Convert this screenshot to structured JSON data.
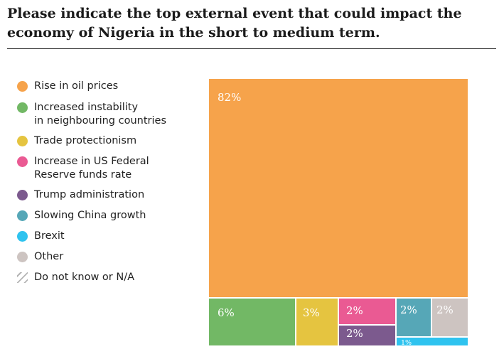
{
  "title": "Please indicate the top external event that could impact the economy of Nigeria in the short to medium term.",
  "legend": [
    {
      "label": "Rise in oil prices",
      "color": "#f6a34b"
    },
    {
      "label": "Increased instability\nin neighbouring countries",
      "color": "#72b865"
    },
    {
      "label": "Trade protectionism",
      "color": "#e5c440"
    },
    {
      "label": "Increase in US Federal\nReserve funds rate",
      "color": "#ea5a93"
    },
    {
      "label": "Trump administration",
      "color": "#7c5a8e"
    },
    {
      "label": "Slowing China growth",
      "color": "#56a7b7"
    },
    {
      "label": "Brexit",
      "color": "#2fc3ef"
    },
    {
      "label": "Other",
      "color": "#cdc4c1"
    },
    {
      "label": "Do not know or N/A",
      "color": "hatched"
    }
  ],
  "chart_data": {
    "type": "treemap",
    "title": "Please indicate the top external event that could impact the economy of Nigeria in the short to medium term.",
    "unit": "%",
    "series": [
      {
        "name": "Rise in oil prices",
        "value": 82,
        "label": "82%",
        "color": "#f6a34b"
      },
      {
        "name": "Increased instability in neighbouring countries",
        "value": 6,
        "label": "6%",
        "color": "#72b865"
      },
      {
        "name": "Trade protectionism",
        "value": 3,
        "label": "3%",
        "color": "#e5c440"
      },
      {
        "name": "Increase in US Federal Reserve funds rate",
        "value": 2,
        "label": "2%",
        "color": "#ea5a93"
      },
      {
        "name": "Trump administration",
        "value": 2,
        "label": "2%",
        "color": "#7c5a8e"
      },
      {
        "name": "Slowing China growth",
        "value": 2,
        "label": "2%",
        "color": "#56a7b7"
      },
      {
        "name": "Other",
        "value": 2,
        "label": "2%",
        "color": "#cdc4c1"
      },
      {
        "name": "Brexit",
        "value": 1,
        "label": "1%",
        "color": "#2fc3ef"
      }
    ]
  }
}
